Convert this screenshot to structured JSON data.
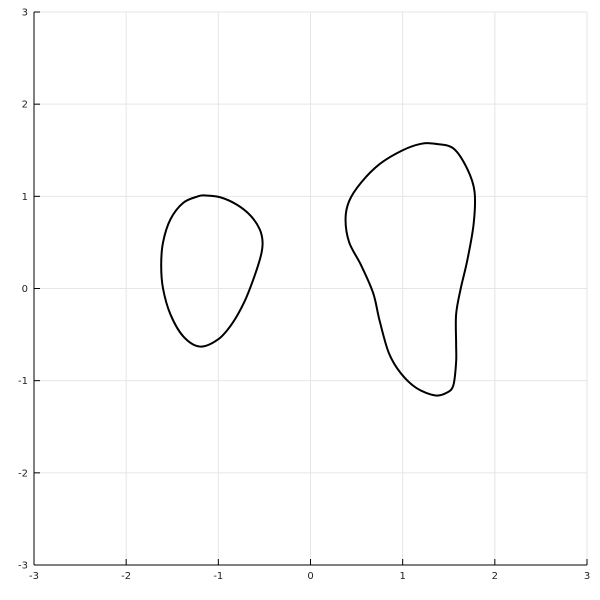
{
  "chart_data": {
    "type": "line",
    "title": "",
    "xlabel": "",
    "ylabel": "",
    "xlim": [
      -3,
      3
    ],
    "ylim": [
      -3,
      3
    ],
    "grid": true,
    "legend": "none",
    "colors": {
      "line": "#000000",
      "grid": "#e6e6e6",
      "axis": "#000000"
    },
    "x_ticks": [
      -3,
      -2,
      -1,
      0,
      1,
      2,
      3
    ],
    "x_tick_labels": [
      "-3",
      "-2",
      "-1",
      "0",
      "1",
      "2",
      "3"
    ],
    "y_ticks": [
      -3,
      -2,
      -1,
      0,
      1,
      2,
      3
    ],
    "y_tick_labels": [
      "-3",
      "-2",
      "-1",
      "0",
      "1",
      "2",
      "3"
    ],
    "series": [
      {
        "closed": true,
        "x": [
          -1.15,
          -0.98,
          -0.8,
          -0.65,
          -0.55,
          -0.52,
          -0.54,
          -0.62,
          -0.72,
          -0.85,
          -1.0,
          -1.2,
          -1.38,
          -1.52,
          -1.6,
          -1.62,
          -1.6,
          -1.52,
          -1.38,
          -1.22
        ],
        "y": [
          1.01,
          0.99,
          0.91,
          0.79,
          0.64,
          0.5,
          0.35,
          0.1,
          -0.15,
          -0.38,
          -0.55,
          -0.63,
          -0.52,
          -0.28,
          0.0,
          0.25,
          0.5,
          0.75,
          0.93,
          1.0
        ]
      },
      {
        "closed": true,
        "x": [
          1.35,
          1.55,
          1.7,
          1.78,
          1.77,
          1.7,
          1.63,
          1.58,
          1.58,
          1.58,
          1.55,
          1.48,
          1.35,
          1.15,
          0.98,
          0.85,
          0.75,
          0.68,
          0.55,
          0.42,
          0.38,
          0.42,
          0.55,
          0.75,
          1.0,
          1.2
        ],
        "y": [
          1.57,
          1.52,
          1.3,
          1.05,
          0.7,
          0.3,
          0.0,
          -0.28,
          -0.6,
          -0.8,
          -1.05,
          -1.13,
          -1.16,
          -1.08,
          -0.92,
          -0.7,
          -0.35,
          -0.05,
          0.25,
          0.5,
          0.75,
          0.95,
          1.15,
          1.35,
          1.5,
          1.57
        ]
      }
    ]
  }
}
